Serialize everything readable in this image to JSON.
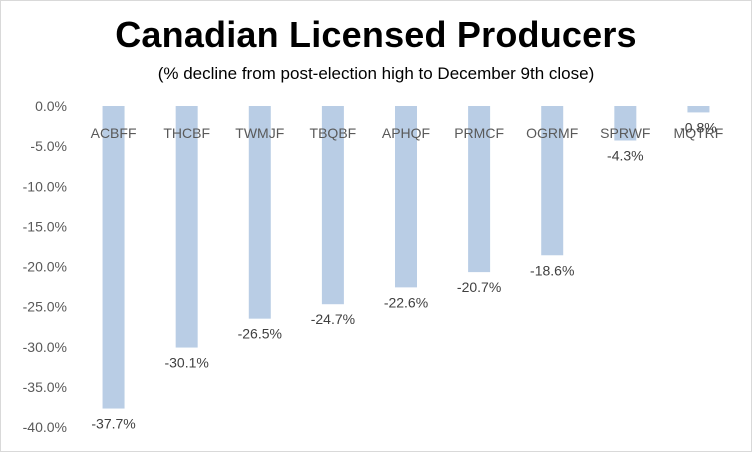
{
  "chart_data": {
    "type": "bar",
    "title": "Canadian Licensed Producers",
    "subtitle": "(% decline from post-election high to December 9th close)",
    "categories": [
      "ACBFF",
      "THCBF",
      "TWMJF",
      "TBQBF",
      "APHQF",
      "PRMCF",
      "OGRMF",
      "SPRWF",
      "MQTRF"
    ],
    "values": [
      -37.7,
      -30.1,
      -26.5,
      -24.7,
      -22.6,
      -20.7,
      -18.6,
      -4.3,
      -0.8
    ],
    "data_labels": [
      "-37.7%",
      "-30.1%",
      "-26.5%",
      "-24.7%",
      "-22.6%",
      "-20.7%",
      "-18.6%",
      "-4.3%",
      "-0.8%"
    ],
    "y_ticks": [
      0,
      -5,
      -10,
      -15,
      -20,
      -25,
      -30,
      -35,
      -40
    ],
    "y_tick_labels": [
      "0.0%",
      "-5.0%",
      "-10.0%",
      "-15.0%",
      "-20.0%",
      "-25.0%",
      "-30.0%",
      "-35.0%",
      "-40.0%"
    ],
    "ylim": [
      -40,
      0
    ],
    "xlabel": "",
    "ylabel": "",
    "grid": false,
    "legend": "none",
    "bar_color": "#b9cde5"
  }
}
